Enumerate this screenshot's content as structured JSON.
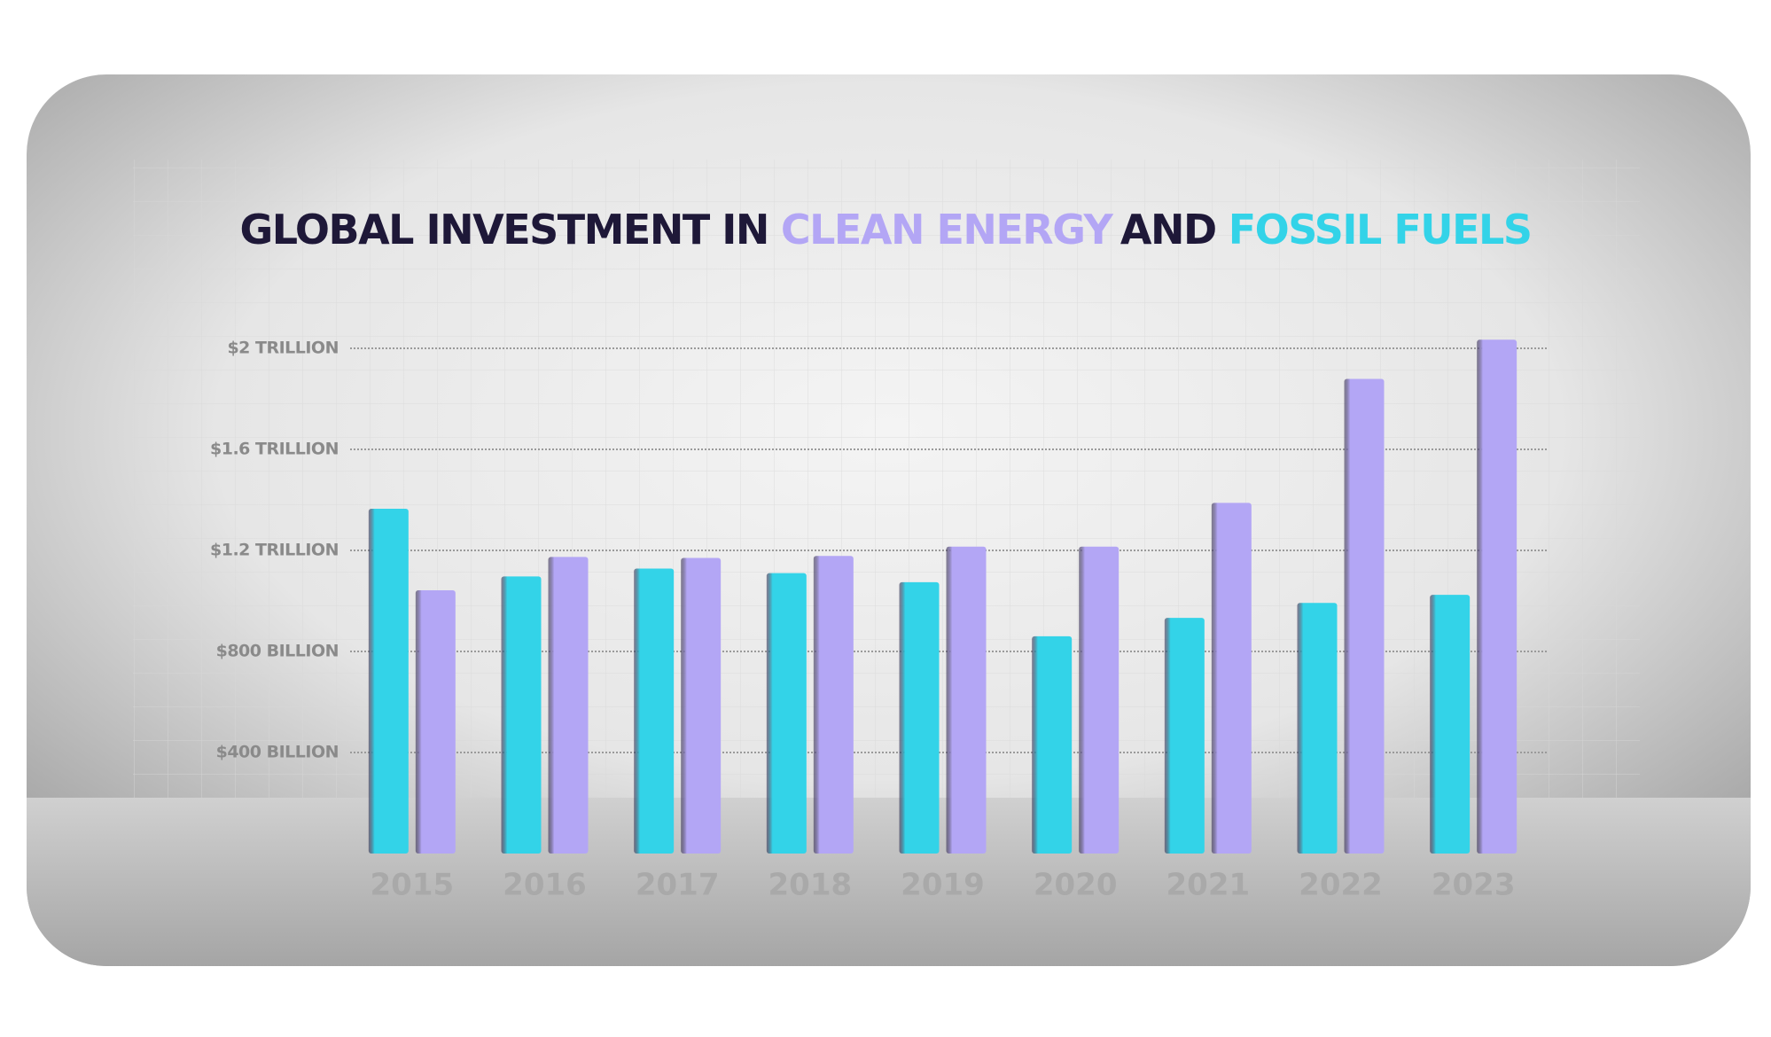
{
  "chart_data": {
    "type": "bar",
    "title_parts": [
      "GLOBAL INVESTMENT IN",
      "AND"
    ],
    "categories": [
      "2015",
      "2016",
      "2017",
      "2018",
      "2019",
      "2020",
      "2021",
      "2022",
      "2023"
    ],
    "series": [
      {
        "name": "FOSSIL FUELS",
        "color": "#33d3e8",
        "values": [
          1365,
          1097,
          1128,
          1110,
          1074,
          860,
          933,
          992,
          1024
        ]
      },
      {
        "name": "CLEAN ENERGY",
        "color": "#b3a6f5",
        "values": [
          1042,
          1174,
          1170,
          1178,
          1215,
          1215,
          1388,
          1879,
          2034
        ]
      }
    ],
    "ylim": [
      0,
      2100
    ],
    "yticks": [
      {
        "value": 400,
        "label": "$400 BILLION"
      },
      {
        "value": 800,
        "label": "$800 BILLION"
      },
      {
        "value": 1200,
        "label": "$1.2 TRILLION"
      },
      {
        "value": 1600,
        "label": "$1.6 TRILLION"
      },
      {
        "value": 2000,
        "label": "$2 TRILLION"
      }
    ],
    "grid": true
  }
}
